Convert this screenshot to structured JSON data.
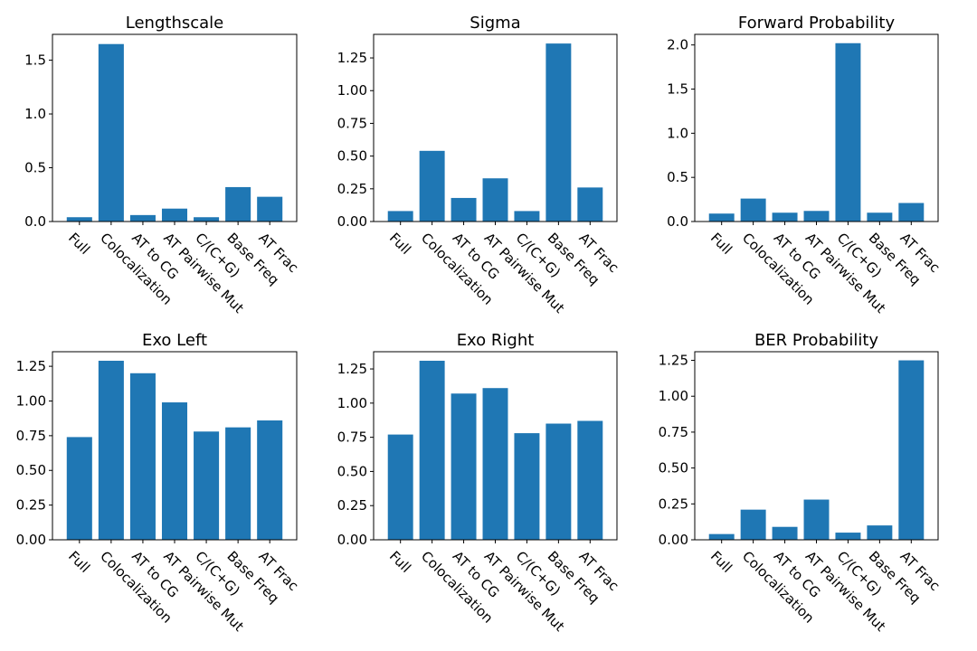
{
  "chart_data": [
    {
      "type": "bar",
      "title": "Lengthscale",
      "categories": [
        "Full",
        "Colocalization",
        "AT to CG",
        "AT Pairwise Mut",
        "C/(C+G)",
        "Base Freq",
        "AT Frac"
      ],
      "values": [
        0.04,
        1.65,
        0.06,
        0.12,
        0.04,
        0.32,
        0.23
      ],
      "ylim": [
        0,
        1.74
      ],
      "yticks": [
        "0.0",
        "0.5",
        "1.0",
        "1.5"
      ],
      "color": "#1f77b4"
    },
    {
      "type": "bar",
      "title": "Sigma",
      "categories": [
        "Full",
        "Colocalization",
        "AT to CG",
        "AT Pairwise Mut",
        "C/(C+G)",
        "Base Freq",
        "AT Frac"
      ],
      "values": [
        0.08,
        0.54,
        0.18,
        0.33,
        0.08,
        1.36,
        0.26
      ],
      "ylim": [
        0,
        1.43
      ],
      "yticks": [
        "0.00",
        "0.25",
        "0.50",
        "0.75",
        "1.00",
        "1.25"
      ],
      "color": "#1f77b4"
    },
    {
      "type": "bar",
      "title": "Forward Probability",
      "categories": [
        "Full",
        "Colocalization",
        "AT to CG",
        "AT Pairwise Mut",
        "C/(C+G)",
        "Base Freq",
        "AT Frac"
      ],
      "values": [
        0.09,
        0.26,
        0.1,
        0.12,
        2.02,
        0.1,
        0.21
      ],
      "ylim": [
        0,
        2.12
      ],
      "yticks": [
        "0.0",
        "0.5",
        "1.0",
        "1.5",
        "2.0"
      ],
      "color": "#1f77b4"
    },
    {
      "type": "bar",
      "title": "Exo Left",
      "categories": [
        "Full",
        "Colocalization",
        "AT to CG",
        "AT Pairwise Mut",
        "C/(C+G)",
        "Base Freq",
        "AT Frac"
      ],
      "values": [
        0.74,
        1.29,
        1.2,
        0.99,
        0.78,
        0.81,
        0.86
      ],
      "ylim": [
        0,
        1.355
      ],
      "yticks": [
        "0.00",
        "0.25",
        "0.50",
        "0.75",
        "1.00",
        "1.25"
      ],
      "color": "#1f77b4"
    },
    {
      "type": "bar",
      "title": "Exo Right",
      "categories": [
        "Full",
        "Colocalization",
        "AT to CG",
        "AT Pairwise Mut",
        "C/(C+G)",
        "Base Freq",
        "AT Frac"
      ],
      "values": [
        0.77,
        1.31,
        1.07,
        1.11,
        0.78,
        0.85,
        0.87
      ],
      "ylim": [
        0,
        1.376
      ],
      "yticks": [
        "0.00",
        "0.25",
        "0.50",
        "0.75",
        "1.00",
        "1.25"
      ],
      "color": "#1f77b4"
    },
    {
      "type": "bar",
      "title": "BER Probability",
      "categories": [
        "Full",
        "Colocalization",
        "AT to CG",
        "AT Pairwise Mut",
        "C/(C+G)",
        "Base Freq",
        "AT Frac"
      ],
      "values": [
        0.04,
        0.21,
        0.09,
        0.28,
        0.05,
        0.1,
        1.25
      ],
      "ylim": [
        0,
        1.31
      ],
      "yticks": [
        "0.00",
        "0.25",
        "0.50",
        "0.75",
        "1.00",
        "1.25"
      ],
      "color": "#1f77b4"
    }
  ]
}
